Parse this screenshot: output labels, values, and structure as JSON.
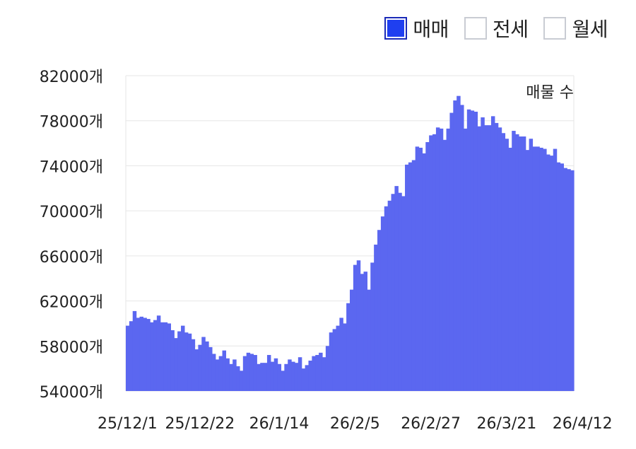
{
  "legend": {
    "items": [
      {
        "label": "매매",
        "active": true
      },
      {
        "label": "전세",
        "active": false
      },
      {
        "label": "월세",
        "active": false
      }
    ]
  },
  "colors": {
    "bar": "#5b67f0",
    "grid": "#e6e6e6",
    "active_swatch": "#1f3ff0"
  },
  "chart_data": {
    "type": "bar",
    "annotation": "매물 수",
    "y_ticks": [
      "82000개",
      "78000개",
      "74000개",
      "70000개",
      "66000개",
      "62000개",
      "58000개",
      "54000개"
    ],
    "x_ticks": [
      "25/12/1",
      "25/12/22",
      "26/1/14",
      "26/2/5",
      "26/2/27",
      "26/3/21",
      "26/4/12"
    ],
    "ylim": [
      54000,
      82000
    ],
    "grid": true,
    "x_start": "2025-12-01",
    "x_end": "2026-04-24",
    "values": [
      59800,
      60200,
      61100,
      60500,
      60600,
      60500,
      60400,
      60100,
      60300,
      60700,
      60100,
      60100,
      60000,
      59400,
      58700,
      59300,
      59800,
      59200,
      59100,
      58600,
      57700,
      58100,
      58800,
      58400,
      57900,
      57300,
      56800,
      57100,
      57600,
      56900,
      56400,
      56800,
      56200,
      55800,
      57100,
      57400,
      57300,
      57200,
      56400,
      56500,
      56500,
      57200,
      56600,
      56900,
      56400,
      55800,
      56400,
      56800,
      56600,
      56500,
      57000,
      56000,
      56300,
      56700,
      57100,
      57200,
      57400,
      57000,
      58000,
      59200,
      59500,
      59800,
      60500,
      60000,
      61800,
      63000,
      65200,
      65600,
      64400,
      64600,
      63000,
      65400,
      67000,
      68300,
      69500,
      70400,
      70900,
      71500,
      72200,
      71600,
      71300,
      74100,
      74300,
      74500,
      75700,
      75600,
      75100,
      76100,
      76700,
      76800,
      77400,
      77300,
      76300,
      77300,
      78700,
      79800,
      80200,
      79400,
      77300,
      79000,
      78900,
      78800,
      77500,
      78300,
      77600,
      77600,
      78400,
      77800,
      77400,
      76900,
      76400,
      75600,
      77100,
      76800,
      76600,
      76600,
      75400,
      76400,
      75700,
      75700,
      75600,
      75500,
      75000,
      74900,
      75500,
      74300,
      74200,
      73800,
      73700,
      73600
    ]
  }
}
